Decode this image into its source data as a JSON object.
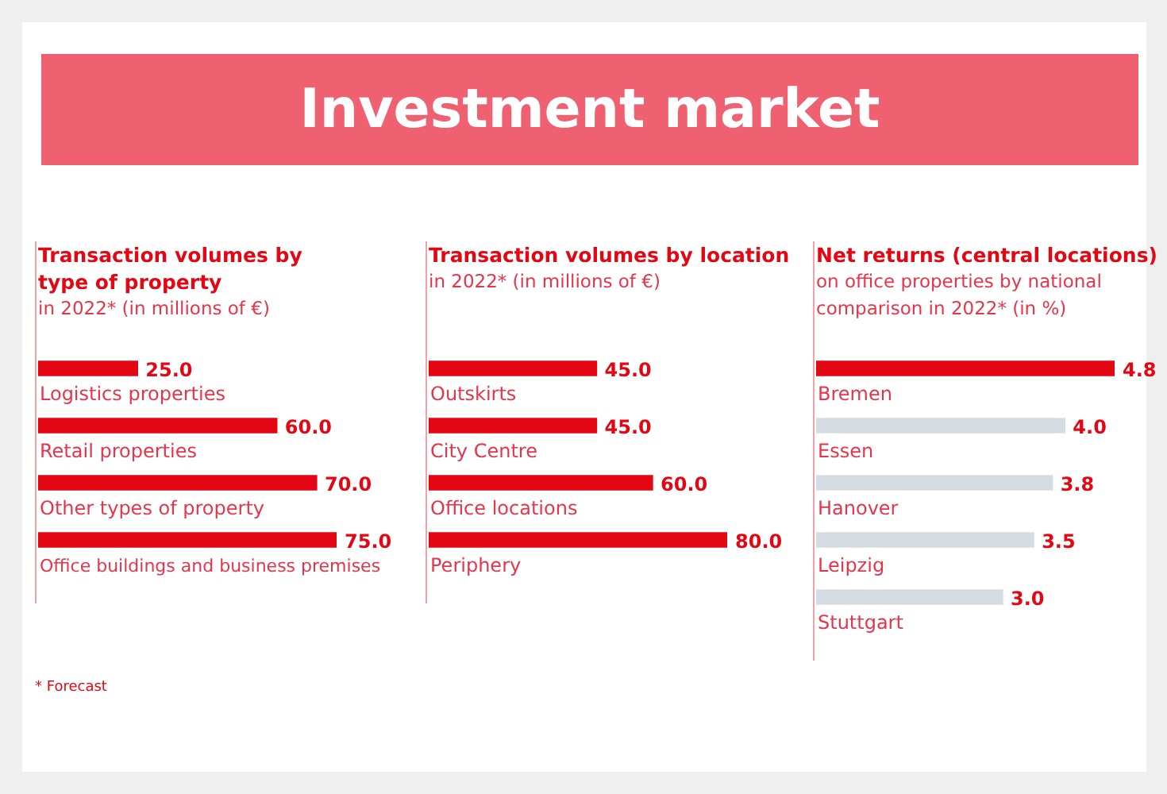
{
  "chart_data": [
    {
      "type": "other",
      "title": "Investment market"
    },
    {
      "type": "bar",
      "orientation": "horizontal",
      "title": "Transaction volumes by type of property",
      "subtitle": "in 2022* (in millions of €)",
      "categories": [
        "Logistics properties",
        "Retail properties",
        "Other types of property",
        "Office buildings and business premises"
      ],
      "values": [
        25,
        60,
        70,
        75
      ],
      "value_labels": [
        "25.0",
        "60.0",
        "70.0",
        "75.0"
      ],
      "colors": [
        "#e30613",
        "#e30613",
        "#e30613",
        "#e30613"
      ],
      "annotations": [
        "* Forecast"
      ]
    },
    {
      "type": "bar",
      "orientation": "horizontal",
      "title": "Transaction volumes by location",
      "subtitle": "in 2022* (in millions of €)",
      "categories": [
        "Outskirts",
        "City Centre",
        "Office locations",
        "Periphery"
      ],
      "values": [
        45,
        45,
        60,
        80
      ],
      "value_labels": [
        "45.0",
        "45.0",
        "60.0",
        "80.0"
      ],
      "colors": [
        "#e30613",
        "#e30613",
        "#e30613",
        "#e30613"
      ]
    },
    {
      "type": "bar",
      "orientation": "horizontal",
      "title": "Net returns (central locations)",
      "subtitle": "on office properties by national comparison in 2022* (in %)",
      "categories": [
        "Bremen",
        "Essen",
        "Hanover",
        "Leipzig",
        "Stuttgart"
      ],
      "values": [
        4.8,
        4.0,
        3.8,
        3.5,
        3.0
      ],
      "value_labels": [
        "4.8",
        "4.0",
        "3.8",
        "3.5",
        "3.0"
      ],
      "colors": [
        "#e30613",
        "#d5dce2",
        "#d5dce2",
        "#d5dce2",
        "#d5dce2"
      ]
    }
  ]
}
